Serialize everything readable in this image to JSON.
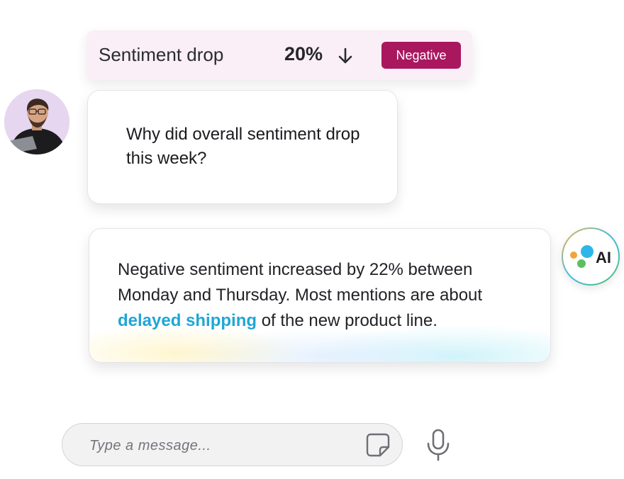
{
  "metric": {
    "label": "Sentiment drop",
    "value": "20%",
    "direction_icon": "arrow-down-icon",
    "badge": "Negative",
    "badge_color": "#a9175f"
  },
  "user_message": {
    "avatar_icon": "user-avatar",
    "text": "Why did overall sentiment drop this week?"
  },
  "ai_message": {
    "text_before": "Negative sentiment increased by 22% between Monday and Thursday. Most mentions are about ",
    "link_text": "delayed shipping",
    "text_after": " of the new product line.",
    "link_color": "#1fa6d6"
  },
  "ai_avatar": {
    "label": "AI",
    "dot_colors": [
      "#f2a33a",
      "#2cb7ea",
      "#5cbf62"
    ]
  },
  "composer": {
    "placeholder": "Type a message...",
    "sticker_icon": "sticker-icon",
    "mic_icon": "microphone-icon"
  }
}
